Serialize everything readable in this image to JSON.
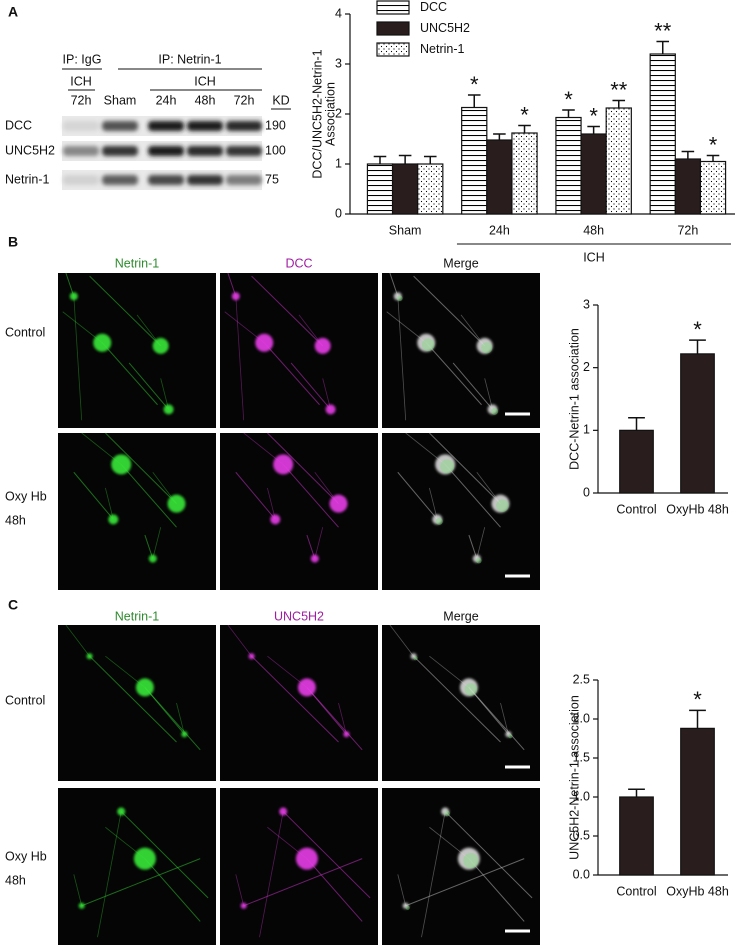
{
  "panel_labels": [
    "A",
    "B",
    "C"
  ],
  "blot": {
    "ip_igg": "IP: IgG",
    "ip_netrin": "IP: Netrin-1",
    "ich_igg": "ICH",
    "lane_igg": "72h",
    "lane_sham": "Sham",
    "ich": "ICH",
    "lanes": [
      "24h",
      "48h",
      "72h"
    ],
    "kd_header": "KD",
    "rows": [
      "DCC",
      "UNC5H2",
      "Netrin-1"
    ],
    "kd": [
      "190",
      "100",
      "75"
    ]
  },
  "micrographs": [
    {
      "columns": [
        "Netrin-1",
        "DCC",
        "Merge"
      ],
      "rows": [
        [
          "Control"
        ],
        [
          "Oxy Hb",
          "48h"
        ]
      ]
    },
    {
      "columns": [
        "Netrin-1",
        "UNC5H2",
        "Merge"
      ],
      "rows": [
        [
          "Control"
        ],
        [
          "Oxy Hb",
          "48h"
        ]
      ]
    }
  ],
  "chart_data": [
    {
      "type": "bar",
      "ylabel": [
        "DCC/UNC5H2-Netrin-1",
        "Association"
      ],
      "categories": [
        "Sham",
        "24h",
        "48h",
        "72h"
      ],
      "group_label": "ICH",
      "series": [
        {
          "name": "DCC",
          "color": "#ffffff",
          "pattern": "hstripe",
          "values": [
            1.0,
            2.13,
            1.93,
            3.2
          ],
          "errors": [
            0.15,
            0.25,
            0.15,
            0.25
          ],
          "annotations": [
            null,
            "*",
            "*",
            "**"
          ]
        },
        {
          "name": "UNC5H2",
          "color": "#2a1d1d",
          "values": [
            1.0,
            1.48,
            1.6,
            1.1
          ],
          "errors": [
            0.17,
            0.12,
            0.15,
            0.15
          ],
          "annotations": [
            null,
            null,
            "*",
            null
          ]
        },
        {
          "name": "Netrin-1",
          "color": "#ffffff",
          "pattern": "dots",
          "values": [
            1.0,
            1.62,
            2.12,
            1.05
          ],
          "errors": [
            0.15,
            0.15,
            0.15,
            0.12
          ],
          "annotations": [
            null,
            "*",
            "**",
            "*"
          ]
        }
      ],
      "ylim": [
        0,
        4
      ],
      "yticks": [
        0,
        1,
        2,
        3,
        4
      ]
    },
    {
      "type": "bar",
      "ylabel": [
        "DCC-Netrin-1 association"
      ],
      "categories": [
        "Control",
        "OxyHb 48h"
      ],
      "series": [
        {
          "color": "#2a1d1d",
          "values": [
            1.0,
            2.22
          ],
          "errors": [
            0.2,
            0.22
          ],
          "annotations": [
            null,
            "*"
          ]
        }
      ],
      "ylim": [
        0,
        3
      ],
      "yticks": [
        0,
        1,
        2,
        3
      ]
    },
    {
      "type": "bar",
      "ylabel": [
        "UNC5H2-Netrin-1 association"
      ],
      "categories": [
        "Control",
        "OxyHb 48h"
      ],
      "series": [
        {
          "color": "#2a1d1d",
          "values": [
            1.0,
            1.88
          ],
          "errors": [
            0.1,
            0.23
          ],
          "annotations": [
            null,
            "*"
          ]
        }
      ],
      "ylim": [
        0,
        2.5
      ],
      "yticks": [
        {
          "value": 0,
          "label": "0.0"
        },
        {
          "value": 0.5,
          "label": "0.5"
        },
        {
          "value": 1,
          "label": "1.0"
        },
        {
          "value": 1.5,
          "label": "1.5"
        },
        {
          "value": 2,
          "label": "2.0"
        },
        {
          "value": 2.5,
          "label": "2.5"
        }
      ]
    }
  ]
}
